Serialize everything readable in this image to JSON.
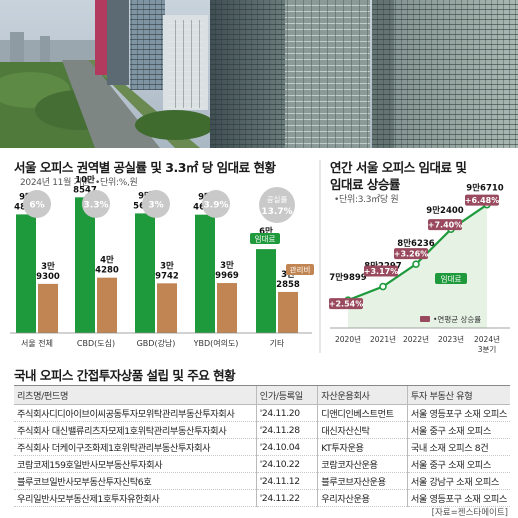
{
  "left_chart": {
    "title": "서울 오피스 권역별 공실률 및 3.3㎡ 당 임대료 현황",
    "date_note": "2024년 11월 기준",
    "unit_note": "•단위:%,원"
  },
  "right_chart": {
    "title_line1": "연간 서울 오피스 임대료 및",
    "title_line2": "임대료 상승률",
    "unit_note": "•단위:3.3㎡당 원"
  },
  "chart_data": [
    {
      "type": "bar",
      "title": "서울 오피스 권역별 공실률 및 3.3㎡ 당 임대료 현황",
      "categories": [
        "서울 전체",
        "CBD(도심)",
        "GBD(강남)",
        "YBD(여의도)",
        "기타"
      ],
      "series": [
        {
          "name": "임대료",
          "values": [
            94889,
            108547,
            95679,
            94664,
            67103
          ],
          "labels_top": [
            "9만",
            "10만",
            "9만",
            "9만",
            "6만"
          ],
          "labels_bottom": [
            "4889",
            "8547",
            "5679",
            "4664",
            "7103"
          ]
        },
        {
          "name": "관리비",
          "values": [
            39300,
            44280,
            39742,
            39969,
            32858
          ],
          "labels_top": [
            "3만",
            "4만",
            "3만",
            "3만",
            "3만"
          ],
          "labels_bottom": [
            "9300",
            "4280",
            "9742",
            "9969",
            "2858"
          ]
        }
      ],
      "vacancy_label": "공실률",
      "vacancy_rates": [
        "6%",
        "3.3%",
        "3%",
        "3.9%",
        "13.7%"
      ],
      "vacancy_values": [
        6,
        3.3,
        3,
        3.9,
        13.7
      ],
      "legend_rent": "임대료",
      "legend_fee": "관리비",
      "colors": {
        "rent": "#1e9a3c",
        "fee": "#c08552",
        "bubble": "#c9c9c9"
      }
    },
    {
      "type": "line",
      "title": "연간 서울 오피스 임대료 및 임대료 상승률",
      "x": [
        "2020년",
        "2021년",
        "2022년",
        "2023년",
        "2024년 3분기"
      ],
      "x_label_top": [
        "2020년",
        "2021년",
        "2022년",
        "2023년",
        "2024년"
      ],
      "x_label_bottom": [
        "",
        "",
        "",
        "",
        "3분기"
      ],
      "series": [
        {
          "name": "임대료",
          "values": [
            79899,
            82297,
            86236,
            92400,
            96710
          ],
          "labels_top": [
            "7만",
            "8만2297",
            "8만6236",
            "9만2400",
            "9만6710"
          ],
          "labels_bottom": [
            "9899",
            "",
            "",
            "",
            ""
          ]
        }
      ],
      "growth_rates": [
        "+2.54%",
        "+3.17%",
        "+3.26%",
        "+7.40%",
        "+6.48%"
      ],
      "growth_values": [
        2.54,
        3.17,
        3.26,
        7.4,
        6.48
      ],
      "line_label": "임대료",
      "growth_legend": "연평균 상승률",
      "colors": {
        "line": "#1e9a3c",
        "badge": "#9a4a5e"
      }
    }
  ],
  "table": {
    "title": "국내 오피스 간접투자상품 설립 및 주요 현황",
    "headers": [
      "리츠명/펀드명",
      "인가/등록일",
      "자산운용회사",
      "투자 부동산 유형"
    ],
    "rows": [
      [
        "주식회사디디아이브이씨공동투자모위탁관리부동산투자회사",
        "'24.11.20",
        "디앤디인베스트먼트",
        "서울 영등포구 소재 오피스"
      ],
      [
        "주식회사 대신밸류리츠자모제1호위탁관리부동산투자회사",
        "'24.11.28",
        "대신자산신탁",
        "서울 중구 소재 오피스"
      ],
      [
        "주식회사 더케이구조화제1호위탁관리부동산투자회사",
        "'24.10.04",
        "KT투자운용",
        "국내 소재 오피스 8건"
      ],
      [
        "코람코제159호일반사모부동산투자회사",
        "'24.10.22",
        "코람코자산운용",
        "서울 중구 소재 오피스"
      ],
      [
        "블루코브일반사모부동산투자신탁6호",
        "'24.11.12",
        "블루코브자산운용",
        "서울 강남구 소재 오피스"
      ],
      [
        "우리일반사모부동산제1호투자유한회사",
        "'24.11.22",
        "우리자산운용",
        "서울 영등포구 소재 오피스"
      ]
    ],
    "source": "[자료=젠스타메이트]"
  }
}
